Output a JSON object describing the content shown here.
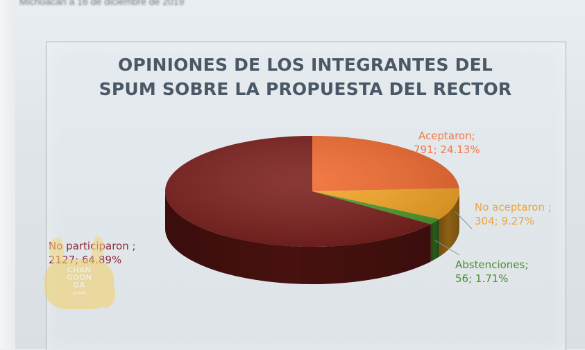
{
  "page": {
    "top_text": "Michoacán a 16 de diciembre de 2019"
  },
  "chart_data": {
    "type": "pie",
    "title_lines": [
      "OPINIONES DE LOS INTEGRANTES DEL",
      "SPUM SOBRE LA PROPUESTA DEL RECTOR"
    ],
    "style": "3d",
    "slices": [
      {
        "name": "Aceptaron",
        "value": 791,
        "percent": 24.13,
        "color": "#f26a2e",
        "label_lines": [
          "Aceptaron;",
          "791; 24.13%"
        ]
      },
      {
        "name": "No aceptaron",
        "value": 304,
        "percent": 9.27,
        "color": "#f6a623",
        "label_lines": [
          "No aceptaron ;",
          "304; 9.27%"
        ]
      },
      {
        "name": "Abstenciones",
        "value": 56,
        "percent": 1.71,
        "color": "#4c9a2a",
        "label_lines": [
          "Abstenciones;",
          "56; 1.71%"
        ]
      },
      {
        "name": "No participaron",
        "value": 2127,
        "percent": 64.89,
        "color": "#7a1d1a",
        "label_lines": [
          "No participaron ;",
          "2127; 64.89%"
        ]
      }
    ]
  },
  "watermark": {
    "lines": [
      "CHAN",
      "GOON",
      "GA"
    ],
    "suffix": ".com"
  }
}
